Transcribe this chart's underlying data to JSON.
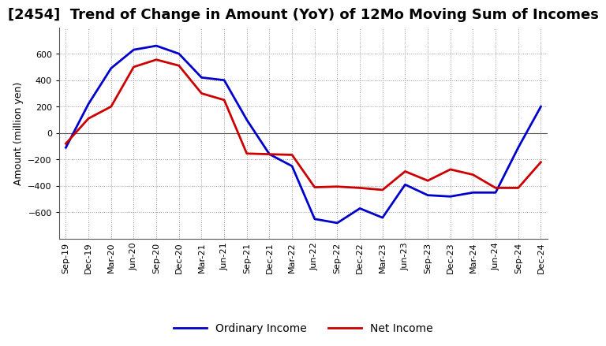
{
  "title": "[2454]  Trend of Change in Amount (YoY) of 12Mo Moving Sum of Incomes",
  "ylabel": "Amount (million yen)",
  "x_labels": [
    "Sep-19",
    "Dec-19",
    "Mar-20",
    "Jun-20",
    "Sep-20",
    "Dec-20",
    "Mar-21",
    "Jun-21",
    "Sep-21",
    "Dec-21",
    "Mar-22",
    "Jun-22",
    "Sep-22",
    "Dec-22",
    "Mar-23",
    "Jun-23",
    "Sep-23",
    "Dec-23",
    "Mar-24",
    "Jun-24",
    "Sep-24",
    "Dec-24"
  ],
  "ordinary_income": [
    -110,
    220,
    490,
    630,
    660,
    600,
    420,
    400,
    100,
    -160,
    -250,
    -650,
    -680,
    -570,
    -640,
    -390,
    -470,
    -480,
    -450,
    -450,
    -110,
    200
  ],
  "net_income": [
    -80,
    110,
    200,
    500,
    555,
    510,
    300,
    250,
    -155,
    -160,
    -165,
    -410,
    -405,
    -415,
    -430,
    -290,
    -360,
    -275,
    -315,
    -415,
    -415,
    -220
  ],
  "ordinary_income_color": "#0000cc",
  "net_income_color": "#cc0000",
  "line_width": 2.0,
  "background_color": "#ffffff",
  "plot_bg_color": "#ffffff",
  "grid_color": "#999999",
  "ylim_min": -800,
  "ylim_max": 800,
  "yticks": [
    -600,
    -400,
    -200,
    0,
    200,
    400,
    600
  ],
  "legend_ordinary": "Ordinary Income",
  "legend_net": "Net Income",
  "title_fontsize": 13,
  "axis_label_fontsize": 9,
  "tick_fontsize": 8,
  "legend_fontsize": 10
}
